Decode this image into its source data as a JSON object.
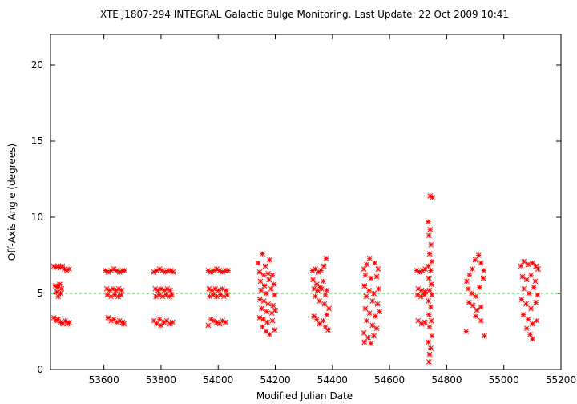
{
  "chart_data": {
    "type": "scatter",
    "title": "XTE J1807-294   INTEGRAL Galactic Bulge Monitoring.  Last Update: 22 Oct 2009 10:41",
    "xlabel": "Modified Julian Date",
    "ylabel": "Off-Axis Angle (degrees)",
    "xlim": [
      53413,
      55200
    ],
    "ylim": [
      0,
      22
    ],
    "xticks": [
      53600,
      53800,
      54000,
      54200,
      54400,
      54600,
      54800,
      55000,
      55200
    ],
    "yticks": [
      0,
      5,
      10,
      15,
      20
    ],
    "reference_line": {
      "y": 5,
      "color": "#00cc00",
      "style": "dashed"
    },
    "grid": false,
    "legend": "none",
    "marker": "asterisk",
    "colors": {
      "points": "#ff0000",
      "reference": "#00dd00",
      "axes": "#000000"
    },
    "series": [
      {
        "points": [
          [
            53425,
            6.8
          ],
          [
            53432,
            6.7
          ],
          [
            53440,
            6.8
          ],
          [
            53448,
            6.7
          ],
          [
            53455,
            6.8
          ],
          [
            53462,
            6.6
          ],
          [
            53470,
            6.5
          ],
          [
            53478,
            6.6
          ],
          [
            53430,
            5.5
          ],
          [
            53438,
            5.4
          ],
          [
            53445,
            5.6
          ],
          [
            53452,
            5.3
          ],
          [
            53435,
            5.1
          ],
          [
            53448,
            5.0
          ],
          [
            53440,
            4.8
          ],
          [
            53425,
            3.4
          ],
          [
            53432,
            3.2
          ],
          [
            53440,
            3.3
          ],
          [
            53448,
            3.1
          ],
          [
            53456,
            3.0
          ],
          [
            53465,
            3.2
          ],
          [
            53472,
            3.0
          ],
          [
            53478,
            3.1
          ],
          [
            53605,
            6.5
          ],
          [
            53615,
            6.4
          ],
          [
            53625,
            6.5
          ],
          [
            53635,
            6.6
          ],
          [
            53645,
            6.5
          ],
          [
            53655,
            6.4
          ],
          [
            53665,
            6.5
          ],
          [
            53672,
            6.5
          ],
          [
            53610,
            5.3
          ],
          [
            53620,
            5.2
          ],
          [
            53632,
            5.3
          ],
          [
            53642,
            5.2
          ],
          [
            53652,
            5.3
          ],
          [
            53662,
            5.2
          ],
          [
            53612,
            4.9
          ],
          [
            53625,
            4.8
          ],
          [
            53638,
            4.9
          ],
          [
            53650,
            4.8
          ],
          [
            53660,
            4.9
          ],
          [
            53615,
            3.4
          ],
          [
            53625,
            3.2
          ],
          [
            53635,
            3.3
          ],
          [
            53645,
            3.1
          ],
          [
            53655,
            3.2
          ],
          [
            53665,
            3.1
          ],
          [
            53670,
            3.0
          ],
          [
            53775,
            6.4
          ],
          [
            53785,
            6.5
          ],
          [
            53795,
            6.6
          ],
          [
            53805,
            6.5
          ],
          [
            53815,
            6.4
          ],
          [
            53825,
            6.5
          ],
          [
            53835,
            6.5
          ],
          [
            53842,
            6.4
          ],
          [
            53780,
            5.3
          ],
          [
            53790,
            5.2
          ],
          [
            53800,
            5.3
          ],
          [
            53812,
            5.2
          ],
          [
            53822,
            5.3
          ],
          [
            53832,
            5.2
          ],
          [
            53782,
            4.8
          ],
          [
            53794,
            4.9
          ],
          [
            53806,
            4.8
          ],
          [
            53818,
            4.9
          ],
          [
            53830,
            4.8
          ],
          [
            53838,
            4.9
          ],
          [
            53775,
            3.2
          ],
          [
            53785,
            3.0
          ],
          [
            53795,
            3.3
          ],
          [
            53800,
            2.9
          ],
          [
            53810,
            3.1
          ],
          [
            53820,
            3.2
          ],
          [
            53832,
            3.0
          ],
          [
            53840,
            3.1
          ],
          [
            53965,
            6.5
          ],
          [
            53975,
            6.4
          ],
          [
            53985,
            6.5
          ],
          [
            53995,
            6.6
          ],
          [
            54005,
            6.5
          ],
          [
            54015,
            6.4
          ],
          [
            54025,
            6.5
          ],
          [
            54035,
            6.5
          ],
          [
            53968,
            5.3
          ],
          [
            53978,
            5.2
          ],
          [
            53990,
            5.3
          ],
          [
            54002,
            5.2
          ],
          [
            54015,
            5.3
          ],
          [
            54028,
            5.2
          ],
          [
            53970,
            4.8
          ],
          [
            53982,
            4.9
          ],
          [
            53995,
            4.8
          ],
          [
            54008,
            4.9
          ],
          [
            54020,
            4.8
          ],
          [
            54032,
            4.9
          ],
          [
            53965,
            2.9
          ],
          [
            53975,
            3.3
          ],
          [
            53985,
            3.2
          ],
          [
            53995,
            3.1
          ],
          [
            54005,
            3.0
          ],
          [
            54015,
            3.2
          ],
          [
            54025,
            3.1
          ],
          [
            54140,
            7.0
          ],
          [
            54155,
            7.6
          ],
          [
            54165,
            6.8
          ],
          [
            54180,
            7.2
          ],
          [
            54145,
            6.4
          ],
          [
            54160,
            6.2
          ],
          [
            54175,
            6.3
          ],
          [
            54190,
            6.2
          ],
          [
            54148,
            5.8
          ],
          [
            54162,
            5.5
          ],
          [
            54178,
            5.9
          ],
          [
            54195,
            5.6
          ],
          [
            54150,
            5.2
          ],
          [
            54168,
            5.0
          ],
          [
            54185,
            5.3
          ],
          [
            54198,
            4.9
          ],
          [
            54146,
            4.6
          ],
          [
            54160,
            4.5
          ],
          [
            54175,
            4.3
          ],
          [
            54192,
            4.2
          ],
          [
            54152,
            4.0
          ],
          [
            54170,
            3.8
          ],
          [
            54188,
            3.7
          ],
          [
            54200,
            3.9
          ],
          [
            54145,
            3.4
          ],
          [
            54158,
            3.3
          ],
          [
            54172,
            3.1
          ],
          [
            54190,
            3.2
          ],
          [
            54155,
            2.8
          ],
          [
            54168,
            2.5
          ],
          [
            54180,
            2.3
          ],
          [
            54198,
            2.6
          ],
          [
            54330,
            6.5
          ],
          [
            54340,
            6.6
          ],
          [
            54350,
            6.4
          ],
          [
            54360,
            6.5
          ],
          [
            54370,
            6.8
          ],
          [
            54378,
            7.3
          ],
          [
            54332,
            5.9
          ],
          [
            54345,
            5.6
          ],
          [
            54358,
            5.4
          ],
          [
            54368,
            5.8
          ],
          [
            54380,
            5.2
          ],
          [
            54335,
            5.3
          ],
          [
            54348,
            5.2
          ],
          [
            54362,
            5.3
          ],
          [
            54375,
            4.9
          ],
          [
            54340,
            4.8
          ],
          [
            54355,
            4.5
          ],
          [
            54372,
            4.3
          ],
          [
            54335,
            3.5
          ],
          [
            54345,
            3.3
          ],
          [
            54355,
            3.0
          ],
          [
            54368,
            3.2
          ],
          [
            54375,
            2.8
          ],
          [
            54385,
            2.6
          ],
          [
            54380,
            3.6
          ],
          [
            54388,
            4.0
          ],
          [
            54510,
            6.6
          ],
          [
            54520,
            6.9
          ],
          [
            54530,
            7.3
          ],
          [
            54548,
            7.0
          ],
          [
            54560,
            6.6
          ],
          [
            54515,
            6.2
          ],
          [
            54535,
            6.0
          ],
          [
            54555,
            6.1
          ],
          [
            54512,
            5.5
          ],
          [
            54528,
            5.2
          ],
          [
            54545,
            5.0
          ],
          [
            54562,
            5.3
          ],
          [
            54518,
            4.8
          ],
          [
            54540,
            4.5
          ],
          [
            54558,
            4.3
          ],
          [
            54515,
            4.0
          ],
          [
            54530,
            3.7
          ],
          [
            54550,
            3.5
          ],
          [
            54565,
            3.8
          ],
          [
            54520,
            3.2
          ],
          [
            54540,
            2.9
          ],
          [
            54555,
            2.7
          ],
          [
            54510,
            2.4
          ],
          [
            54525,
            2.1
          ],
          [
            54545,
            2.2
          ],
          [
            54512,
            1.8
          ],
          [
            54535,
            1.7
          ],
          [
            54695,
            6.5
          ],
          [
            54705,
            6.4
          ],
          [
            54715,
            6.5
          ],
          [
            54725,
            6.6
          ],
          [
            54700,
            5.3
          ],
          [
            54712,
            5.2
          ],
          [
            54725,
            5.1
          ],
          [
            54698,
            4.9
          ],
          [
            54710,
            4.8
          ],
          [
            54722,
            4.9
          ],
          [
            54700,
            3.2
          ],
          [
            54712,
            3.0
          ],
          [
            54724,
            3.1
          ],
          [
            54735,
            9.7
          ],
          [
            54742,
            9.2
          ],
          [
            54738,
            8.8
          ],
          [
            54745,
            8.2
          ],
          [
            54740,
            7.6
          ],
          [
            54748,
            7.1
          ],
          [
            54736,
            6.8
          ],
          [
            54744,
            6.5
          ],
          [
            54738,
            6.0
          ],
          [
            54746,
            5.6
          ],
          [
            54740,
            5.2
          ],
          [
            54748,
            4.9
          ],
          [
            54736,
            4.5
          ],
          [
            54744,
            4.1
          ],
          [
            54738,
            3.6
          ],
          [
            54746,
            3.2
          ],
          [
            54740,
            2.8
          ],
          [
            54748,
            2.2
          ],
          [
            54736,
            1.8
          ],
          [
            54744,
            1.4
          ],
          [
            54740,
            1.0
          ],
          [
            54738,
            0.5
          ],
          [
            54742,
            11.4
          ],
          [
            54750,
            11.3
          ],
          [
            54870,
            5.8
          ],
          [
            54880,
            6.2
          ],
          [
            54890,
            6.6
          ],
          [
            54900,
            7.2
          ],
          [
            54912,
            7.5
          ],
          [
            54920,
            7.0
          ],
          [
            54930,
            6.5
          ],
          [
            54875,
            5.3
          ],
          [
            54888,
            5.0
          ],
          [
            54902,
            4.8
          ],
          [
            54915,
            5.4
          ],
          [
            54928,
            6.0
          ],
          [
            54878,
            4.4
          ],
          [
            54892,
            4.2
          ],
          [
            54906,
            3.9
          ],
          [
            54920,
            4.1
          ],
          [
            54868,
            2.5
          ],
          [
            54902,
            3.5
          ],
          [
            54920,
            3.2
          ],
          [
            54932,
            2.2
          ],
          [
            55060,
            6.8
          ],
          [
            55070,
            7.1
          ],
          [
            55085,
            6.9
          ],
          [
            55100,
            7.0
          ],
          [
            55112,
            6.8
          ],
          [
            55120,
            6.6
          ],
          [
            55065,
            6.1
          ],
          [
            55080,
            5.9
          ],
          [
            55095,
            6.2
          ],
          [
            55110,
            5.8
          ],
          [
            55070,
            5.3
          ],
          [
            55088,
            5.0
          ],
          [
            55105,
            5.4
          ],
          [
            55118,
            4.9
          ],
          [
            55062,
            4.6
          ],
          [
            55078,
            4.3
          ],
          [
            55095,
            4.0
          ],
          [
            55112,
            4.4
          ],
          [
            55068,
            3.6
          ],
          [
            55085,
            3.3
          ],
          [
            55100,
            3.0
          ],
          [
            55115,
            3.2
          ],
          [
            55080,
            2.7
          ],
          [
            55092,
            2.3
          ],
          [
            55100,
            2.0
          ]
        ]
      }
    ]
  }
}
